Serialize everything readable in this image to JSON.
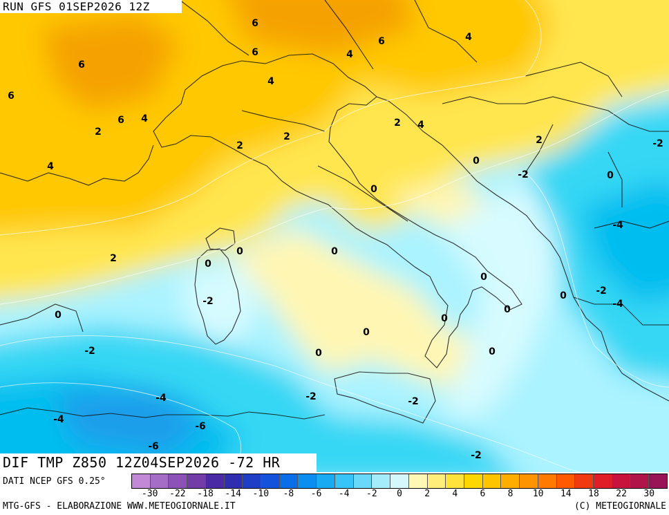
{
  "header": {
    "run": "RUN GFS 01SEP2026 12Z"
  },
  "title": "DIF TMP Z850 12Z04SEP2026 -72 HR",
  "source_note": "DATI NCEP GFS 0.25°",
  "footer": {
    "left": "MTG-GFS - ELABORAZIONE WWW.METEOGIORNALE.IT",
    "right": "(C) METEOGIORNALE"
  },
  "colors": {
    "positive_strong": "#f5a200",
    "positive": "#ffc800",
    "positive_weak": "#ffe650",
    "near_zero_warm": "#fff6b3",
    "near_zero_cold": "#d7fbff",
    "negative_weak": "#aaf3ff",
    "negative": "#36d7f4",
    "negative_strong": "#00bdef",
    "negative_deep": "#1d9eea"
  },
  "scale": {
    "colors": [
      "#c28ad6",
      "#a66dc7",
      "#8c52b7",
      "#733ca6",
      "#4b2aa6",
      "#2f2db0",
      "#1f3ec6",
      "#1452db",
      "#0a6ee8",
      "#0a8ef0",
      "#18aaf2",
      "#36c5f6",
      "#6ad9f9",
      "#a4ebfb",
      "#d6f7fb",
      "#fff7b4",
      "#ffee7a",
      "#ffe33c",
      "#ffd700",
      "#ffc400",
      "#ffae00",
      "#ff9400",
      "#ff7a00",
      "#ff5a00",
      "#f23a10",
      "#e01e28",
      "#c8143c",
      "#b01448",
      "#981456"
    ],
    "ticks": [
      "-30",
      "-22",
      "-18",
      "-14",
      "-10",
      "-8",
      "-6",
      "-4",
      "-2",
      "0",
      "2",
      "4",
      "6",
      "8",
      "10",
      "14",
      "18",
      "22",
      "30"
    ]
  },
  "map_labels": [
    "6",
    "6",
    "6",
    "4",
    "6",
    "6",
    "4",
    "4",
    "6",
    "4",
    "2",
    "2",
    "2",
    "4",
    "2",
    "2",
    "4",
    "2",
    "0",
    "-2",
    "0",
    "-2",
    "0",
    "0",
    "-4",
    "2",
    "0",
    "0",
    "0",
    "-2",
    "-4",
    "-2",
    "0",
    "0",
    "0",
    "0",
    "-2",
    "0",
    "0",
    "-2",
    "-4",
    "-2",
    "-4",
    "-6",
    "-6",
    "-2"
  ]
}
